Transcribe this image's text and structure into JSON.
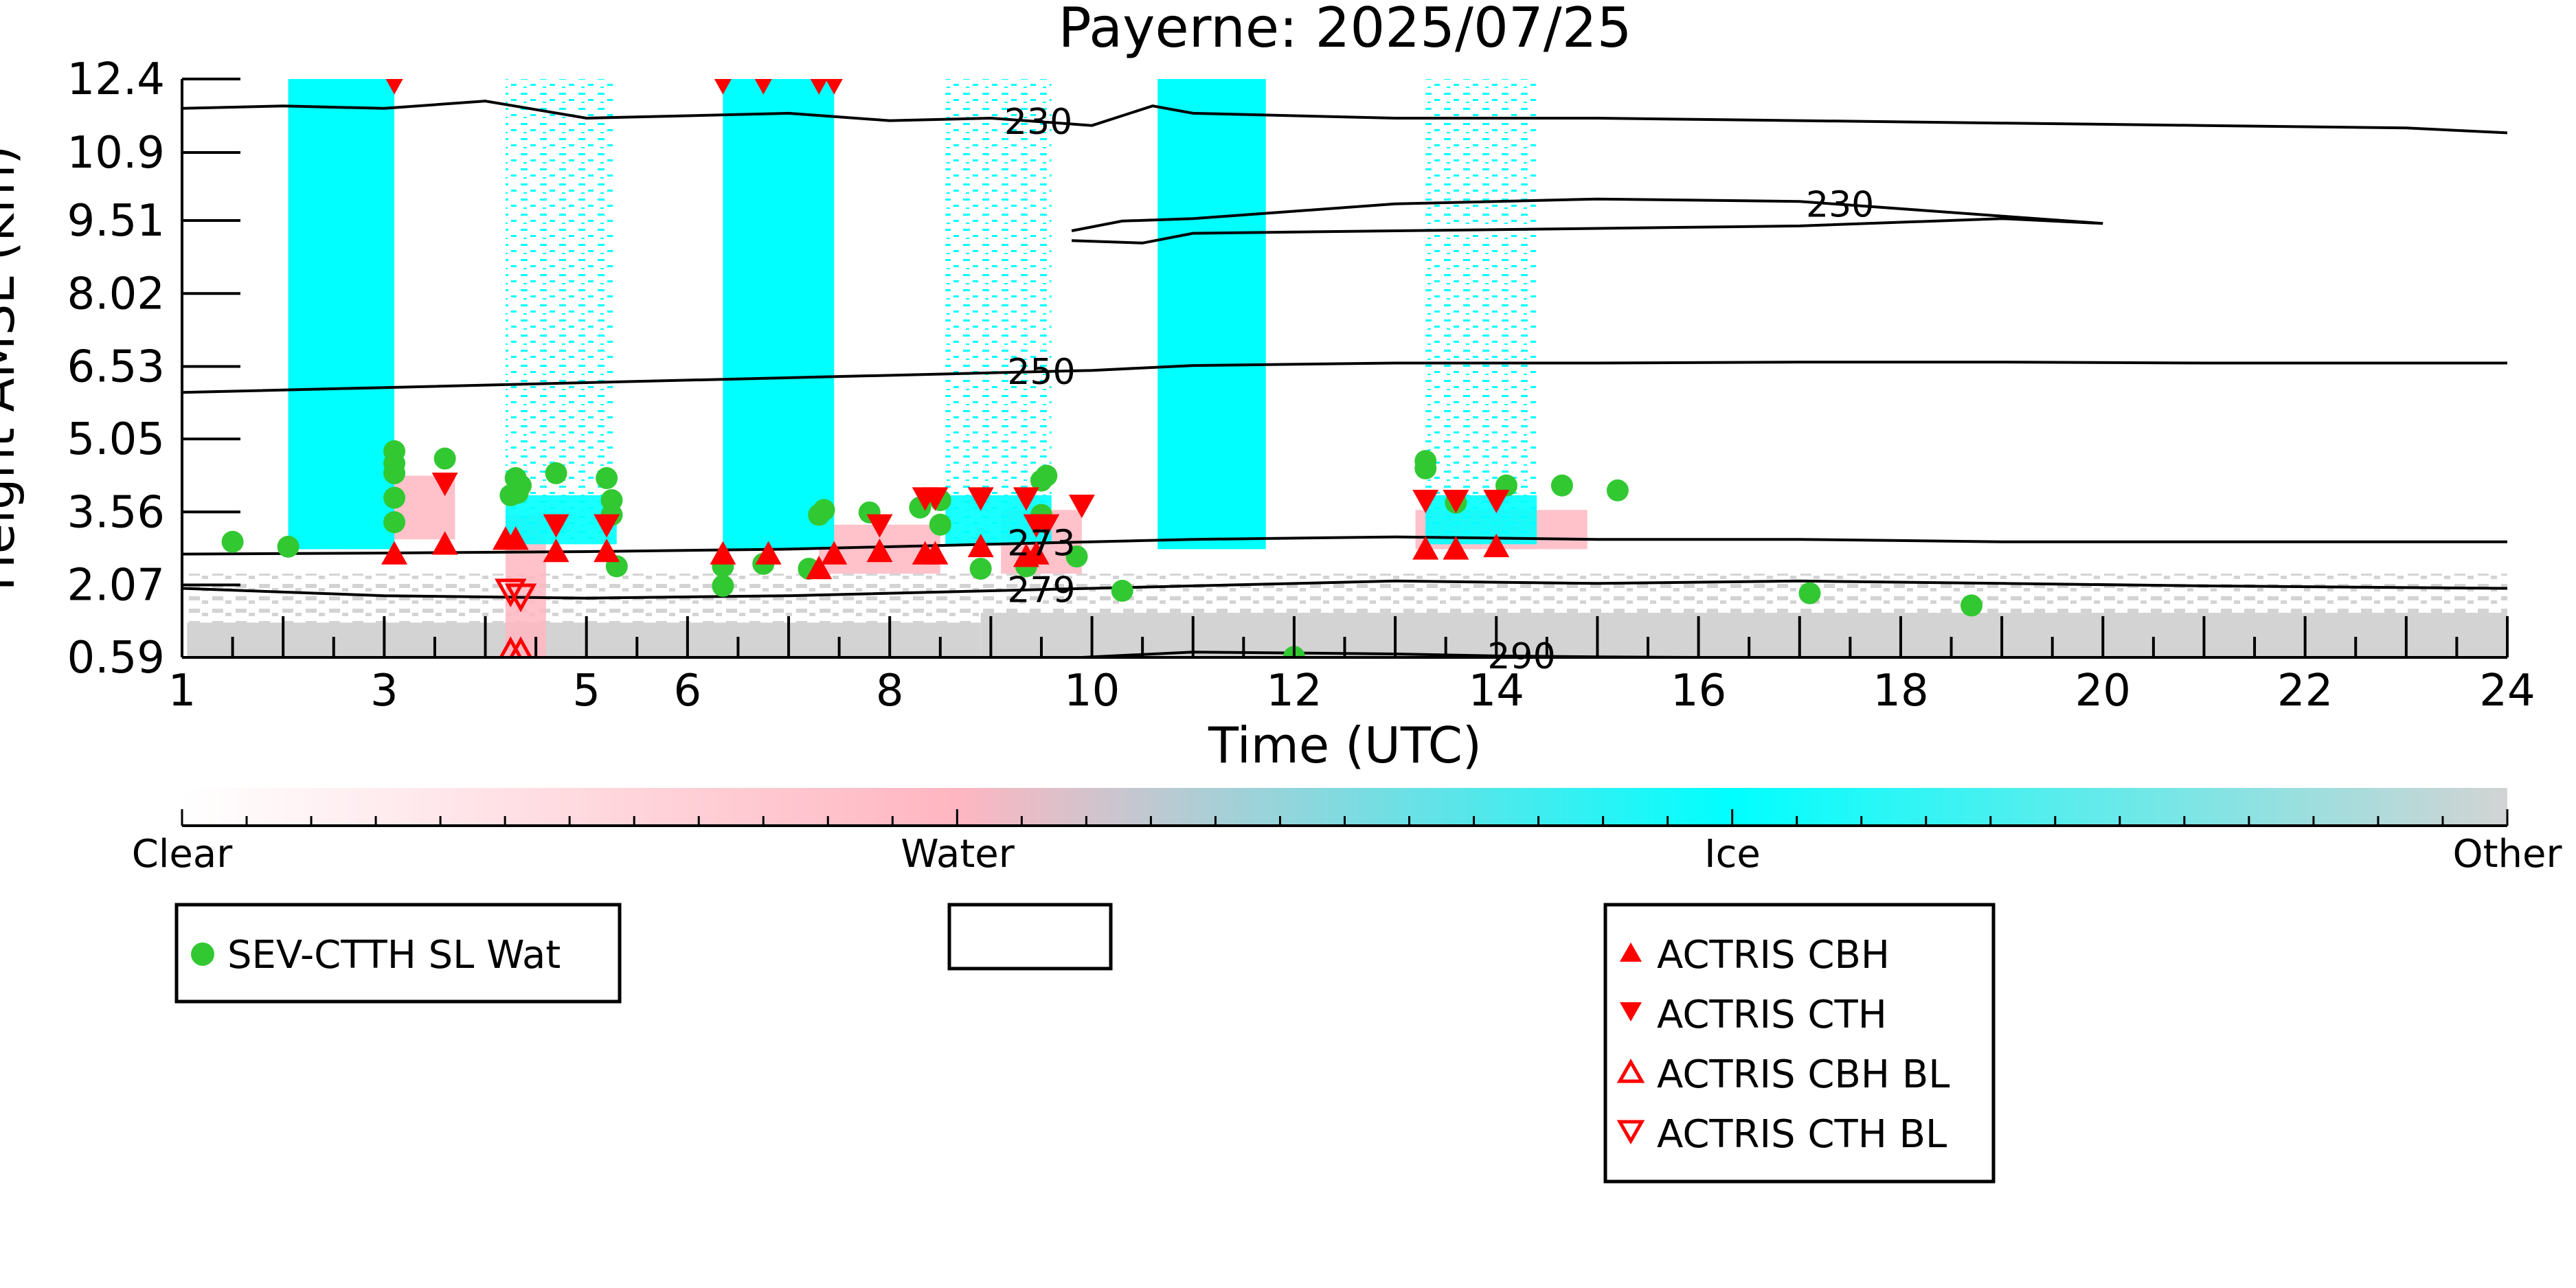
{
  "chart_data": {
    "type": "scatter",
    "title": "Payerne: 2025/07/25",
    "xlabel": "Time (UTC)",
    "ylabel": "Height AMSL (km)",
    "xlim": [
      1,
      24
    ],
    "ylim": [
      0.59,
      12.4
    ],
    "x_ticks": [
      1,
      3,
      5,
      6,
      8,
      10,
      12,
      14,
      16,
      18,
      20,
      22,
      24
    ],
    "y_ticks": [
      "0.59",
      "2.07",
      "3.56",
      "5.05",
      "6.53",
      "8.02",
      "9.51",
      "10.9",
      "12.4"
    ],
    "y_tick_values": [
      0.59,
      2.07,
      3.56,
      5.05,
      6.53,
      8.02,
      9.51,
      10.9,
      12.4
    ],
    "grid": false,
    "background_classification": {
      "ice_columns": [
        [
          2.05,
          3.1
        ],
        [
          6.35,
          7.45
        ],
        [
          10.65,
          11.72
        ]
      ],
      "speckled_ice_columns": [
        [
          4.2,
          5.3
        ],
        [
          8.55,
          9.6
        ],
        [
          13.3,
          14.4
        ]
      ],
      "water_patches": [
        [
          2.6,
          3.7,
          3.0,
          4.3
        ],
        [
          4.2,
          4.6,
          0.6,
          3.5
        ],
        [
          7.3,
          8.5,
          2.3,
          3.3
        ],
        [
          9.1,
          9.9,
          2.3,
          3.6
        ],
        [
          13.2,
          14.9,
          2.8,
          3.6
        ]
      ],
      "other_layer_top_km": 2.3
    },
    "contours": [
      {
        "label": "230",
        "label_x": 9.47,
        "values": [
          [
            1,
            11.8
          ],
          [
            2,
            11.85
          ],
          [
            3,
            11.8
          ],
          [
            4,
            11.95
          ],
          [
            5,
            11.6
          ],
          [
            6,
            11.65
          ],
          [
            7,
            11.7
          ],
          [
            8,
            11.55
          ],
          [
            9,
            11.6
          ],
          [
            10,
            11.45
          ],
          [
            10.6,
            11.85
          ],
          [
            11,
            11.7
          ],
          [
            13,
            11.6
          ],
          [
            15,
            11.6
          ],
          [
            17,
            11.55
          ],
          [
            19,
            11.5
          ],
          [
            21,
            11.45
          ],
          [
            23,
            11.4
          ],
          [
            24,
            11.3
          ]
        ]
      },
      {
        "label": "230",
        "label_x": 17.4,
        "values": [
          [
            9.8,
            9.3
          ],
          [
            10.3,
            9.5
          ],
          [
            11,
            9.55
          ],
          [
            12,
            9.7
          ],
          [
            13,
            9.85
          ],
          [
            15,
            9.95
          ],
          [
            17,
            9.9
          ],
          [
            19,
            9.6
          ],
          [
            20,
            9.45
          ],
          [
            19,
            9.55
          ],
          [
            17,
            9.4
          ],
          [
            15,
            9.35
          ],
          [
            13,
            9.3
          ],
          [
            11,
            9.25
          ],
          [
            10.5,
            9.05
          ],
          [
            9.8,
            9.1
          ]
        ]
      },
      {
        "label": "250",
        "label_x": 9.5,
        "values": [
          [
            1,
            6.0
          ],
          [
            3,
            6.1
          ],
          [
            5,
            6.2
          ],
          [
            7,
            6.3
          ],
          [
            9,
            6.4
          ],
          [
            10,
            6.45
          ],
          [
            11,
            6.55
          ],
          [
            13,
            6.6
          ],
          [
            15,
            6.6
          ],
          [
            17,
            6.62
          ],
          [
            19,
            6.62
          ],
          [
            21,
            6.6
          ],
          [
            24,
            6.6
          ]
        ]
      },
      {
        "label": "273",
        "label_x": 9.5,
        "values": [
          [
            1,
            2.7
          ],
          [
            3,
            2.72
          ],
          [
            5,
            2.75
          ],
          [
            7,
            2.8
          ],
          [
            9,
            2.9
          ],
          [
            10,
            2.95
          ],
          [
            11,
            3.0
          ],
          [
            13,
            3.05
          ],
          [
            15,
            3.0
          ],
          [
            17,
            3.0
          ],
          [
            19,
            2.95
          ],
          [
            21,
            2.95
          ],
          [
            24,
            2.95
          ]
        ]
      },
      {
        "label": "279",
        "label_x": 9.5,
        "values": [
          [
            1,
            2.0
          ],
          [
            3,
            1.85
          ],
          [
            5,
            1.8
          ],
          [
            7,
            1.85
          ],
          [
            9,
            1.95
          ],
          [
            11,
            2.05
          ],
          [
            13,
            2.15
          ],
          [
            15,
            2.1
          ],
          [
            17,
            2.15
          ],
          [
            19,
            2.1
          ],
          [
            21,
            2.05
          ],
          [
            24,
            2.0
          ]
        ]
      },
      {
        "label": "290",
        "label_x": 14.25,
        "values": [
          [
            9.9,
            0.59
          ],
          [
            11,
            0.7
          ],
          [
            12,
            0.68
          ],
          [
            13,
            0.66
          ],
          [
            14,
            0.62
          ],
          [
            15,
            0.6
          ],
          [
            16,
            0.59
          ]
        ]
      }
    ],
    "series": [
      {
        "name": "SEV-CTTH SL Wat",
        "marker": "circle",
        "color": "#32c832",
        "points": [
          [
            1.5,
            2.95
          ],
          [
            2.05,
            2.85
          ],
          [
            3.1,
            4.8
          ],
          [
            3.1,
            4.55
          ],
          [
            3.1,
            4.35
          ],
          [
            3.1,
            3.85
          ],
          [
            3.1,
            3.35
          ],
          [
            3.6,
            4.65
          ],
          [
            4.3,
            4.25
          ],
          [
            4.35,
            4.1
          ],
          [
            4.32,
            3.95
          ],
          [
            4.25,
            3.9
          ],
          [
            4.7,
            4.35
          ],
          [
            5.2,
            4.25
          ],
          [
            5.25,
            3.8
          ],
          [
            5.25,
            3.5
          ],
          [
            5.3,
            2.45
          ],
          [
            6.35,
            2.45
          ],
          [
            6.35,
            2.05
          ],
          [
            6.75,
            2.5
          ],
          [
            7.2,
            2.4
          ],
          [
            7.35,
            3.6
          ],
          [
            7.3,
            3.5
          ],
          [
            7.8,
            3.55
          ],
          [
            8.3,
            3.65
          ],
          [
            8.5,
            3.8
          ],
          [
            8.5,
            3.3
          ],
          [
            8.9,
            2.4
          ],
          [
            9.35,
            2.45
          ],
          [
            9.55,
            4.3
          ],
          [
            9.5,
            4.2
          ],
          [
            9.5,
            3.5
          ],
          [
            9.85,
            2.65
          ],
          [
            10.3,
            1.95
          ],
          [
            12.0,
            0.6
          ],
          [
            13.3,
            4.6
          ],
          [
            13.3,
            4.45
          ],
          [
            13.6,
            3.75
          ],
          [
            14.1,
            4.1
          ],
          [
            14.65,
            4.1
          ],
          [
            15.2,
            4.0
          ],
          [
            17.1,
            1.9
          ],
          [
            18.7,
            1.65
          ]
        ]
      },
      {
        "name": "ACTRIS CBH",
        "marker": "triangle-up",
        "color": "#ff0000",
        "points": [
          [
            3.1,
            2.7
          ],
          [
            3.6,
            2.9
          ],
          [
            4.2,
            3.0
          ],
          [
            4.3,
            3.0
          ],
          [
            4.7,
            2.75
          ],
          [
            5.2,
            2.75
          ],
          [
            6.35,
            2.7
          ],
          [
            6.8,
            2.7
          ],
          [
            7.3,
            2.4
          ],
          [
            7.45,
            2.7
          ],
          [
            7.9,
            2.75
          ],
          [
            8.35,
            2.7
          ],
          [
            8.45,
            2.7
          ],
          [
            8.9,
            2.85
          ],
          [
            9.35,
            2.65
          ],
          [
            9.45,
            2.7
          ],
          [
            13.3,
            2.8
          ],
          [
            13.6,
            2.8
          ],
          [
            14.0,
            2.85
          ]
        ]
      },
      {
        "name": "ACTRIS CTH",
        "marker": "triangle-down",
        "color": "#ff0000",
        "points": [
          [
            3.1,
            12.35
          ],
          [
            3.6,
            4.15
          ],
          [
            4.7,
            3.3
          ],
          [
            5.2,
            3.3
          ],
          [
            6.35,
            12.35
          ],
          [
            6.75,
            12.35
          ],
          [
            7.3,
            12.35
          ],
          [
            7.45,
            12.35
          ],
          [
            7.9,
            3.3
          ],
          [
            8.35,
            3.85
          ],
          [
            8.45,
            3.85
          ],
          [
            8.9,
            3.85
          ],
          [
            9.35,
            3.85
          ],
          [
            9.45,
            3.3
          ],
          [
            9.55,
            3.3
          ],
          [
            9.9,
            3.7
          ],
          [
            13.3,
            3.8
          ],
          [
            13.6,
            3.8
          ],
          [
            14.0,
            3.8
          ]
        ]
      },
      {
        "name": "ACTRIS CBH BL",
        "marker": "triangle-up-open",
        "color": "#ff0000",
        "points": [
          [
            4.25,
            0.68
          ],
          [
            4.35,
            0.68
          ]
        ]
      },
      {
        "name": "ACTRIS CTH BL",
        "marker": "triangle-down-open",
        "color": "#ff0000",
        "points": [
          [
            4.25,
            1.95
          ],
          [
            4.35,
            1.85
          ]
        ]
      }
    ],
    "colorbar": {
      "labels": [
        "Clear",
        "Water",
        "Ice",
        "Other"
      ],
      "stops": [
        "#ffffff",
        "#ffb6c1",
        "#00ffff",
        "#d3d3d3"
      ]
    },
    "legend_left": [
      "SEV-CTTH SL Wat"
    ],
    "legend_right": [
      "ACTRIS CBH",
      "ACTRIS CTH",
      "ACTRIS CBH BL",
      "ACTRIS CTH BL"
    ],
    "legend_placement": "below-plot"
  },
  "colors": {
    "ice": "#00ffff",
    "water": "#ffb6c1",
    "other": "#d3d3d3",
    "sev": "#32c832",
    "actris": "#ff0000"
  }
}
